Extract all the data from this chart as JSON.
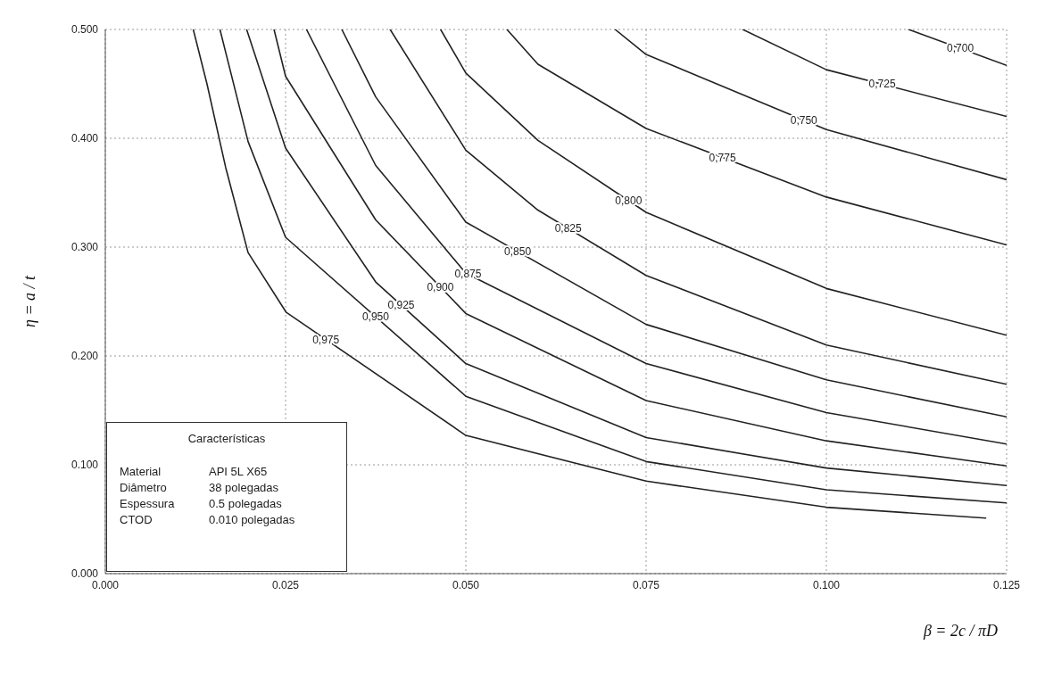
{
  "chart_data": {
    "type": "line",
    "xlabel": "β = 2c / πD",
    "ylabel": "η = a / t",
    "xlim": [
      0,
      0.125
    ],
    "ylim": [
      0,
      0.5
    ],
    "xticks": [
      {
        "value": 0,
        "label": "0.000"
      },
      {
        "value": 0.025,
        "label": "0.025"
      },
      {
        "value": 0.05,
        "label": "0.050"
      },
      {
        "value": 0.075,
        "label": "0.075"
      },
      {
        "value": 0.1,
        "label": "0.100"
      },
      {
        "value": 0.125,
        "label": "0.125"
      }
    ],
    "yticks": [
      {
        "value": 0,
        "label": "0.000"
      },
      {
        "value": 0.1,
        "label": "0.100"
      },
      {
        "value": 0.2,
        "label": "0.200"
      },
      {
        "value": 0.3,
        "label": "0.300"
      },
      {
        "value": 0.4,
        "label": "0.400"
      },
      {
        "value": 0.5,
        "label": "0.500"
      }
    ],
    "grid": true,
    "legend": false,
    "marker": "none",
    "line_style": "solid",
    "series": [
      {
        "name": "0,975",
        "color": "#222222",
        "x": [
          0.0122,
          0.0141,
          0.0167,
          0.0198,
          0.0251,
          0.05,
          0.075,
          0.1,
          0.1221
        ],
        "values": [
          0.5,
          0.45,
          0.373,
          0.295,
          0.24,
          0.127,
          0.085,
          0.061,
          0.051
        ]
      },
      {
        "name": "0,950",
        "color": "#222222",
        "x": [
          0.0159,
          0.0198,
          0.025,
          0.05,
          0.075,
          0.1,
          0.125
        ],
        "values": [
          0.5,
          0.397,
          0.309,
          0.163,
          0.103,
          0.077,
          0.065
        ]
      },
      {
        "name": "0,925",
        "color": "#222222",
        "x": [
          0.0196,
          0.025,
          0.0375,
          0.05,
          0.075,
          0.1,
          0.125
        ],
        "values": [
          0.5,
          0.391,
          0.268,
          0.193,
          0.125,
          0.097,
          0.081
        ]
      },
      {
        "name": "0,900",
        "color": "#222222",
        "x": [
          0.0234,
          0.025,
          0.0375,
          0.05,
          0.075,
          0.1,
          0.125
        ],
        "values": [
          0.5,
          0.457,
          0.325,
          0.239,
          0.159,
          0.122,
          0.099
        ]
      },
      {
        "name": "0,875",
        "color": "#222222",
        "x": [
          0.0279,
          0.0375,
          0.05,
          0.075,
          0.1,
          0.125
        ],
        "values": [
          0.5,
          0.375,
          0.276,
          0.193,
          0.148,
          0.119
        ]
      },
      {
        "name": "0,850",
        "color": "#222222",
        "x": [
          0.0328,
          0.0375,
          0.05,
          0.075,
          0.1,
          0.125
        ],
        "values": [
          0.5,
          0.438,
          0.323,
          0.229,
          0.178,
          0.144
        ]
      },
      {
        "name": "0,825",
        "color": "#222222",
        "x": [
          0.0395,
          0.05,
          0.06,
          0.075,
          0.1,
          0.125
        ],
        "values": [
          0.5,
          0.389,
          0.334,
          0.274,
          0.21,
          0.174
        ]
      },
      {
        "name": "0,800",
        "color": "#222222",
        "x": [
          0.0465,
          0.05,
          0.06,
          0.075,
          0.1,
          0.125
        ],
        "values": [
          0.5,
          0.46,
          0.398,
          0.332,
          0.262,
          0.219
        ]
      },
      {
        "name": "0,775",
        "color": "#222222",
        "x": [
          0.0557,
          0.06,
          0.075,
          0.1,
          0.125
        ],
        "values": [
          0.5,
          0.468,
          0.409,
          0.346,
          0.302
        ]
      },
      {
        "name": "0,750",
        "color": "#222222",
        "x": [
          0.0707,
          0.075,
          0.1,
          0.125
        ],
        "values": [
          0.5,
          0.477,
          0.408,
          0.362
        ]
      },
      {
        "name": "0,725",
        "color": "#222222",
        "x": [
          0.0884,
          0.1,
          0.125
        ],
        "values": [
          0.5,
          0.463,
          0.42
        ]
      },
      {
        "name": "0,700",
        "color": "#222222",
        "x": [
          0.1114,
          0.125
        ],
        "values": [
          0.5,
          0.467
        ]
      }
    ],
    "annotations": [
      "Características",
      "Material",
      "API 5L X65",
      "Diâmetro",
      "38 polegadas",
      "Espessura",
      "0.5 polegadas",
      "CTOD",
      "0.010 polegadas"
    ]
  }
}
